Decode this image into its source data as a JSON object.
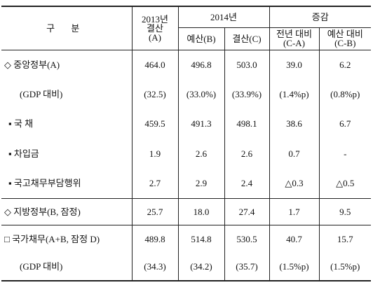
{
  "table": {
    "header": {
      "category": "구 분",
      "col_2013": [
        "2013년",
        "결산",
        "(A)"
      ],
      "group_2014": "2014년",
      "budget": "예산(B)",
      "settlement": "결산(C)",
      "group_change": "증감",
      "vs_prev": [
        "전년 대비",
        "(C-A)"
      ],
      "vs_budget": [
        "예산 대비",
        "(C-B)"
      ]
    },
    "rows": [
      [
        "◇ 중앙정부(A)",
        "464.0",
        "496.8",
        "503.0",
        "39.0",
        "6.2"
      ],
      [
        "(GDP 대비)",
        "(32.5)",
        "(33.0%)",
        "(33.9%)",
        "(1.4%p)",
        "(0.8%p)"
      ],
      [
        "▪ 국 채",
        "459.5",
        "491.3",
        "498.1",
        "38.6",
        "6.7"
      ],
      [
        "▪ 차입금",
        "1.9",
        "2.6",
        "2.6",
        "0.7",
        "-"
      ],
      [
        "▪ 국고채무부담행위",
        "2.7",
        "2.9",
        "2.4",
        "△0.3",
        "△0.5"
      ],
      [
        "◇ 지방정부(B, 잠정)",
        "25.7",
        "18.0",
        "27.4",
        "1.7",
        "9.5"
      ],
      [
        "□ 국가채무(A+B, 잠정 D)",
        "489.8",
        "514.8",
        "530.5",
        "40.7",
        "15.7"
      ],
      [
        "(GDP 대비)",
        "(34.3)",
        "(34.2)",
        "(35.7)",
        "(1.5%p)",
        "(1.5%p)"
      ]
    ]
  }
}
